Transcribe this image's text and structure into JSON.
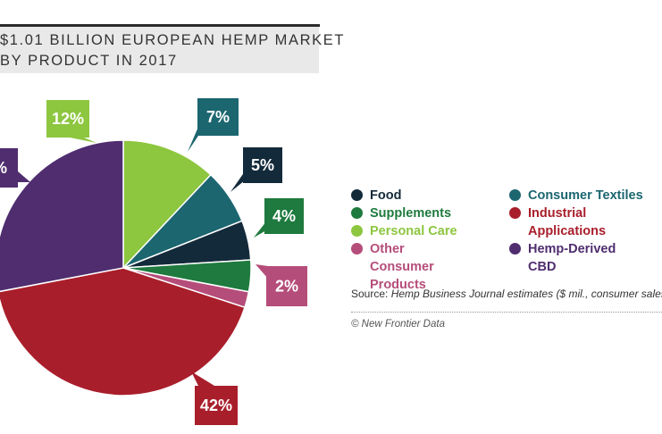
{
  "title": {
    "line1": "$1.01 BILLION EUROPEAN HEMP MARKET",
    "line2": "BY PRODUCT IN 2017"
  },
  "chart_data": {
    "type": "pie",
    "title": "$1.01 BILLION EUROPEAN HEMP MARKET BY PRODUCT IN 2017",
    "slices": [
      {
        "name": "Personal Care",
        "value": 12,
        "label": "12%",
        "color": "#8dc63f"
      },
      {
        "name": "Consumer Textiles",
        "value": 7,
        "label": "7%",
        "color": "#1c6670"
      },
      {
        "name": "Food",
        "value": 5,
        "label": "5%",
        "color": "#132a3a"
      },
      {
        "name": "Supplements",
        "value": 4,
        "label": "4%",
        "color": "#1e7a3e"
      },
      {
        "name": "Other Consumer Products",
        "value": 2,
        "label": "2%",
        "color": "#b54d7a"
      },
      {
        "name": "Industrial Applications",
        "value": 42,
        "label": "42%",
        "color": "#a91e2b"
      },
      {
        "name": "Hemp-Derived CBD",
        "value": 28,
        "label": "%",
        "color": "#4f2d6f"
      }
    ],
    "start": "top, clockwise"
  },
  "legend": {
    "items": [
      {
        "name": "food",
        "label": "Food",
        "color": "#132a3a"
      },
      {
        "name": "supplements",
        "label": "Supplements",
        "color": "#1e7a3e"
      },
      {
        "name": "personal-care",
        "label": "Personal Care",
        "color": "#8dc63f"
      },
      {
        "name": "other-consumer-products",
        "label": "Other Consumer Products",
        "color": "#b54d7a"
      },
      {
        "name": "consumer-textiles",
        "label": "Consumer Textiles",
        "color": "#1c6670"
      },
      {
        "name": "industrial-applications",
        "label": "Industrial Applications",
        "color": "#a91e2b"
      },
      {
        "name": "hemp-derived-cbd",
        "label": "Hemp-Derived CBD",
        "color": "#4f2d6f"
      }
    ]
  },
  "source": {
    "prefix": "Source:",
    "text": " Hemp Business Journal estimates ($ mil., consumer sales)"
  },
  "copyright": "© New Frontier Data"
}
